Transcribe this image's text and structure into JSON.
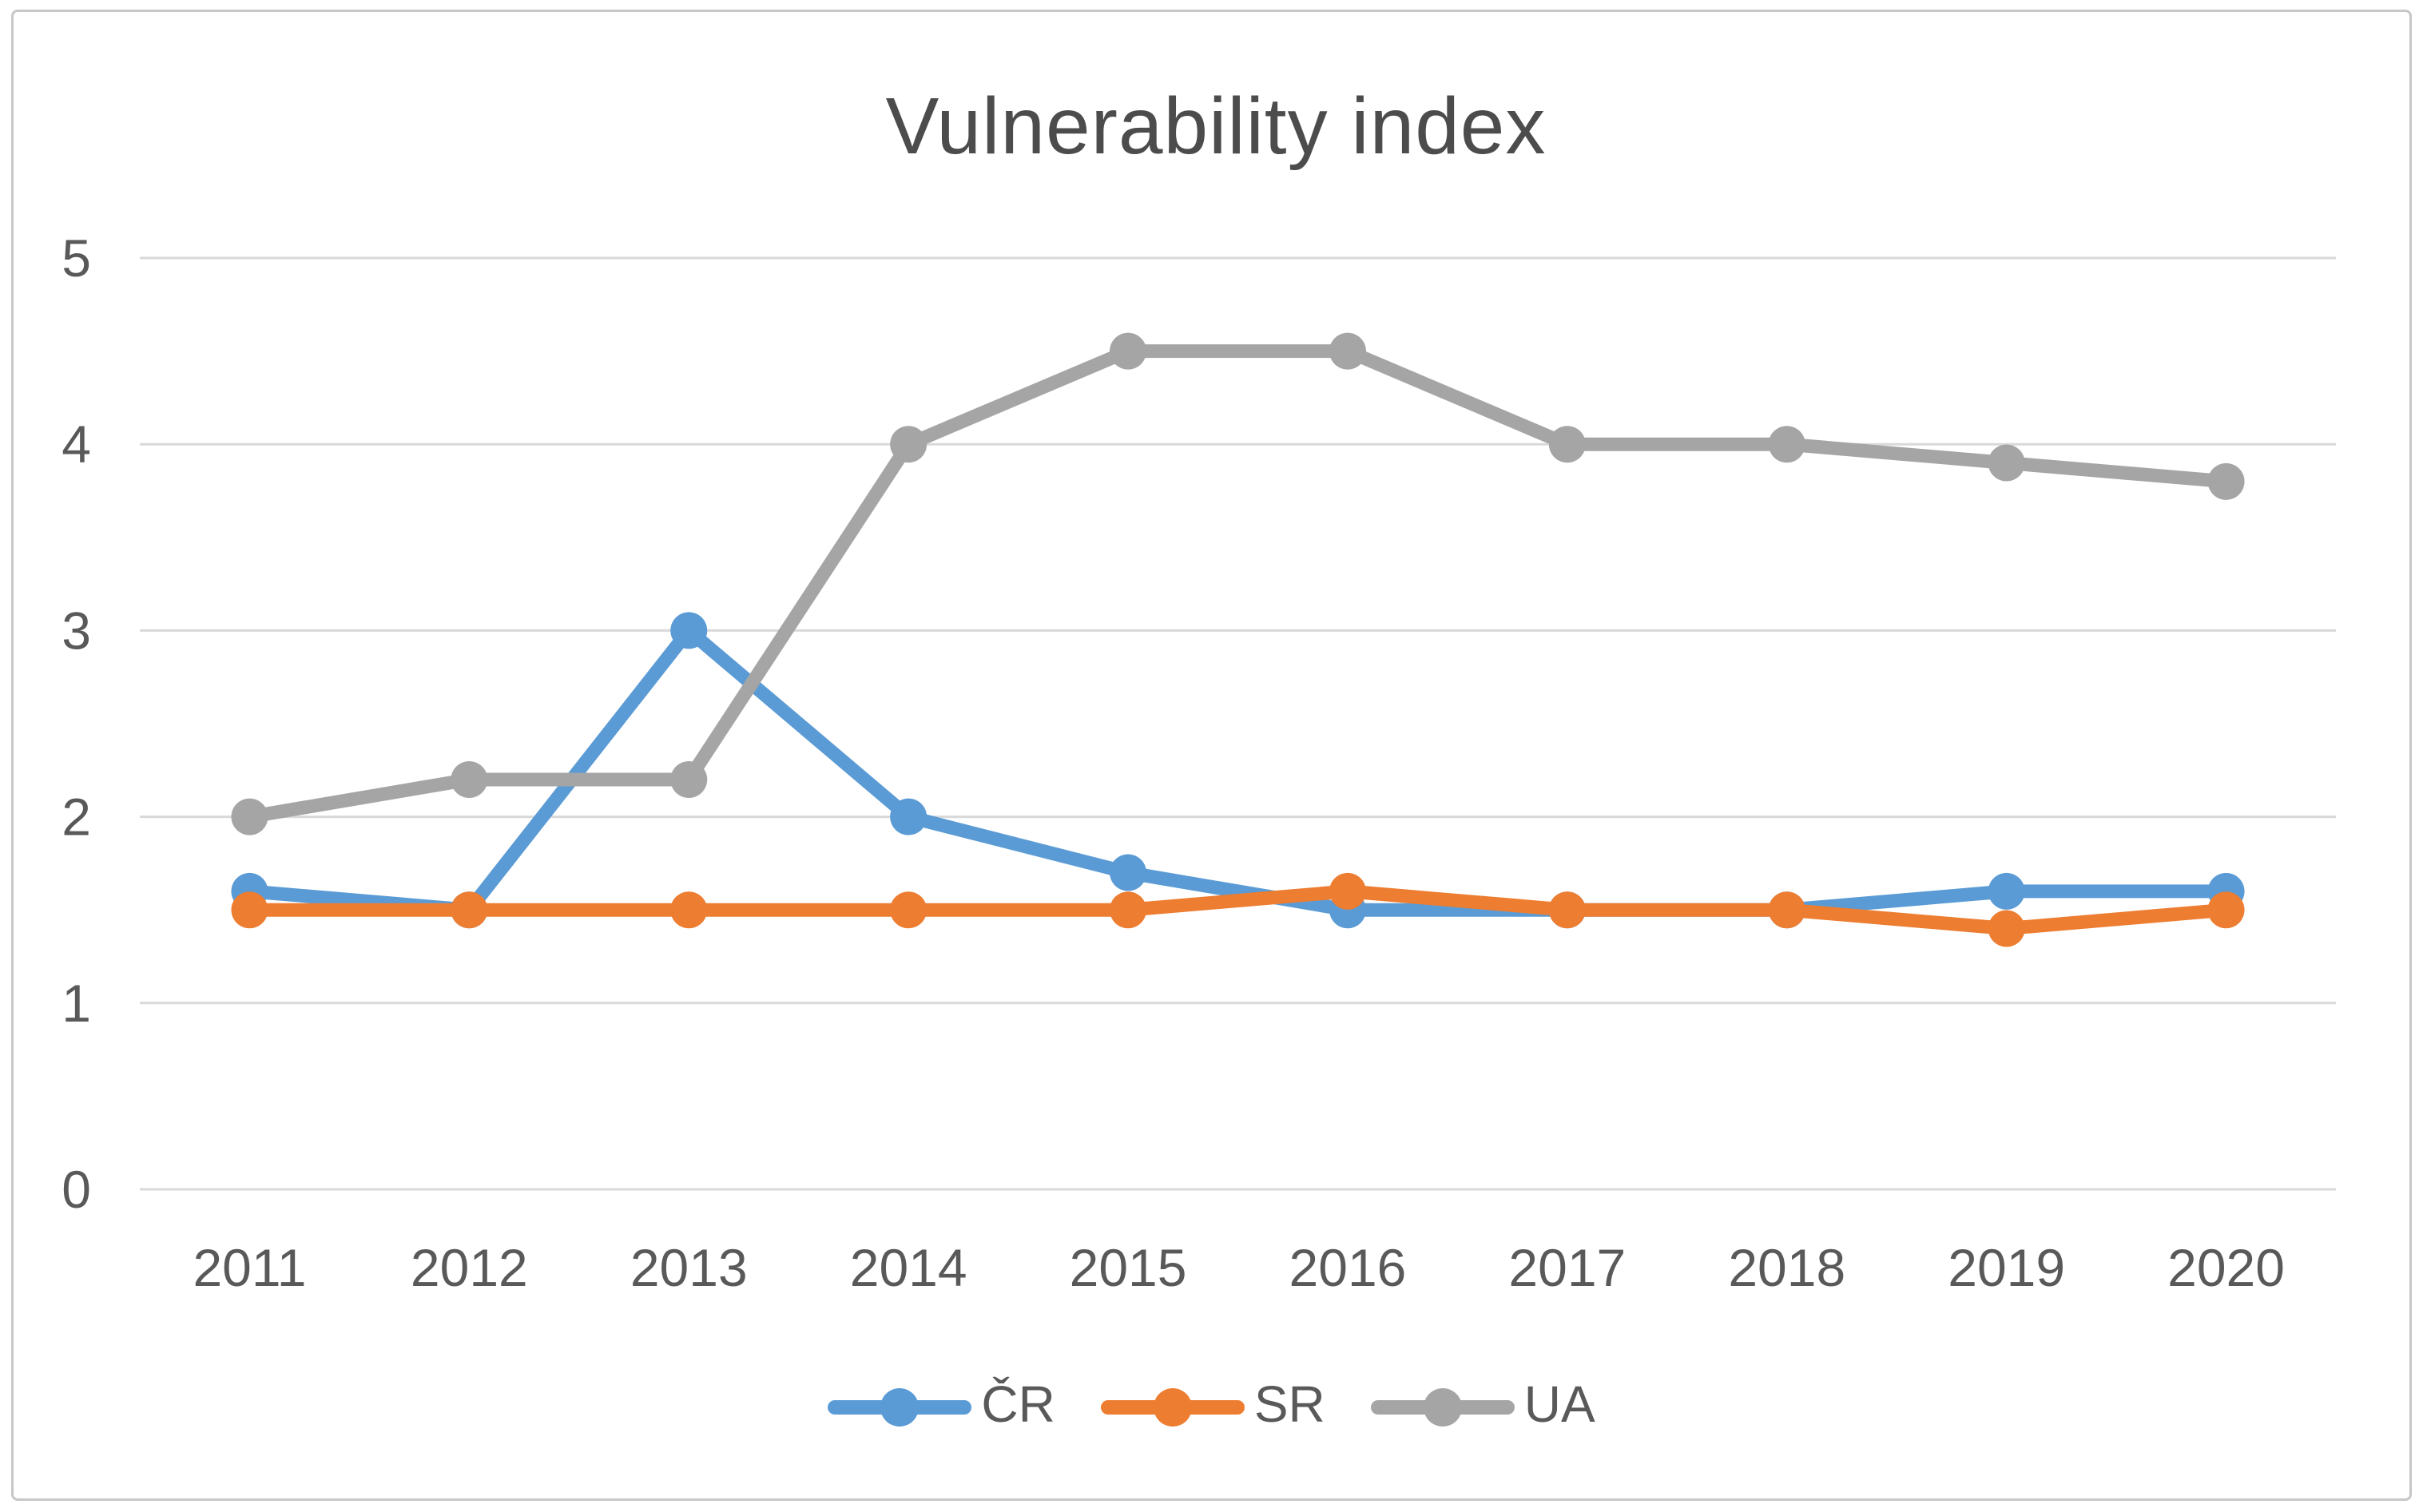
{
  "chart_data": {
    "type": "line",
    "title": "Vulnerability index",
    "categories": [
      "2011",
      "2012",
      "2013",
      "2014",
      "2015",
      "2016",
      "2017",
      "2018",
      "2019",
      "2020"
    ],
    "series": [
      {
        "name": "ČR",
        "color": "#5B9BD5",
        "values": [
          1.6,
          1.5,
          3,
          2,
          1.7,
          1.5,
          1.5,
          1.5,
          1.6,
          1.6
        ]
      },
      {
        "name": "SR",
        "color": "#ED7D31",
        "values": [
          1.5,
          1.5,
          1.5,
          1.5,
          1.5,
          1.6,
          1.5,
          1.5,
          1.4,
          1.5
        ]
      },
      {
        "name": "UA",
        "color": "#A5A5A5",
        "values": [
          2,
          2.2,
          2.2,
          4,
          4.5,
          4.5,
          4,
          4,
          3.9,
          3.8
        ]
      }
    ],
    "xlabel": "",
    "ylabel": "",
    "ylim": [
      0,
      5
    ],
    "yticks": [
      0,
      1,
      2,
      3,
      4,
      5
    ],
    "grid": true,
    "legend_position": "bottom",
    "marker": "circle"
  },
  "colors": {
    "background": "#FFFFFF",
    "frame_border": "#C7C7C7",
    "gridline": "#D9D9D9",
    "axis_text": "#595959",
    "title_text": "#4C4C4C"
  }
}
